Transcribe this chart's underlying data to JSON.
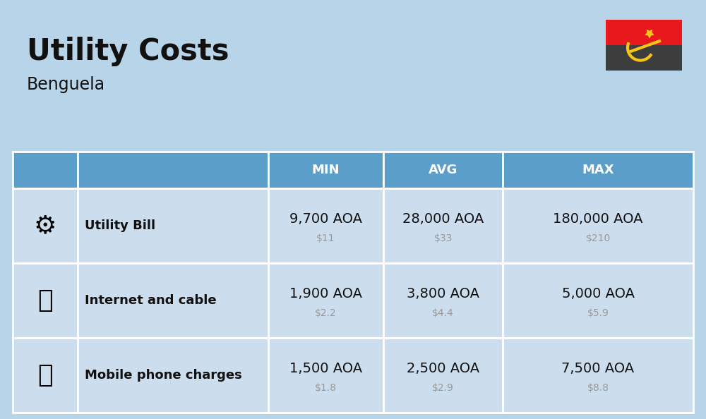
{
  "title": "Utility Costs",
  "subtitle": "Benguela",
  "bg_color": "#b8d4e8",
  "header_bg": "#5b9ec9",
  "header_text_color": "#ffffff",
  "row_bg": "#ccddee",
  "cell_border": "#ffffff",
  "col_headers": [
    "MIN",
    "AVG",
    "MAX"
  ],
  "rows": [
    {
      "label": "Utility Bill",
      "min_aoa": "9,700 AOA",
      "min_usd": "$11",
      "avg_aoa": "28,000 AOA",
      "avg_usd": "$33",
      "max_aoa": "180,000 AOA",
      "max_usd": "$210"
    },
    {
      "label": "Internet and cable",
      "min_aoa": "1,900 AOA",
      "min_usd": "$2.2",
      "avg_aoa": "3,800 AOA",
      "avg_usd": "$4.4",
      "max_aoa": "5,000 AOA",
      "max_usd": "$5.9"
    },
    {
      "label": "Mobile phone charges",
      "min_aoa": "1,500 AOA",
      "min_usd": "$1.8",
      "avg_aoa": "2,500 AOA",
      "avg_usd": "$2.9",
      "max_aoa": "7,500 AOA",
      "max_usd": "$8.8"
    }
  ],
  "title_fontsize": 30,
  "subtitle_fontsize": 17,
  "header_fontsize": 13,
  "label_fontsize": 13,
  "value_fontsize": 14,
  "usd_fontsize": 10,
  "usd_color": "#999999",
  "label_color": "#111111",
  "flag_red": "#e8191c",
  "flag_black": "#3d3d3d",
  "flag_yellow": "#f5c518"
}
